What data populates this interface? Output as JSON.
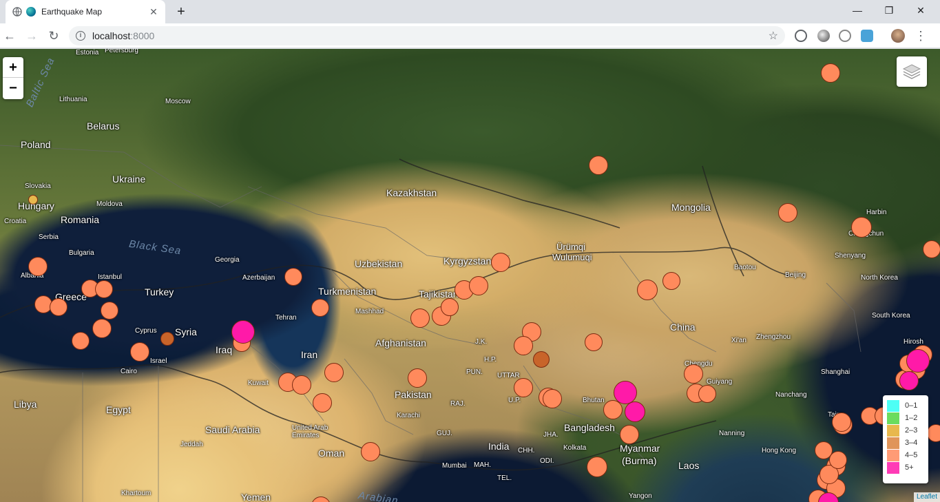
{
  "browser": {
    "tab_title": "Earthquake Map",
    "url_host": "localhost",
    "url_port": ":8000",
    "controls": {
      "close": "✕",
      "new_tab": "+",
      "minimize": "—",
      "maximize": "❐",
      "window_close": "✕"
    }
  },
  "map": {
    "zoom_in": "+",
    "zoom_out": "−",
    "attribution": "Leaflet",
    "labels": [
      {
        "id": "estonia",
        "text": "Estonia",
        "size": "sm"
      },
      {
        "id": "petersburg",
        "text": "Petersburg",
        "size": "sm"
      },
      {
        "id": "lithuania",
        "text": "Lithuania",
        "size": "sm"
      },
      {
        "id": "moscow",
        "text": "Moscow",
        "size": "sm"
      },
      {
        "id": "belarus",
        "text": "Belarus",
        "size": "lg"
      },
      {
        "id": "poland",
        "text": "Poland",
        "size": "lg"
      },
      {
        "id": "ukraine",
        "text": "Ukraine",
        "size": "lg"
      },
      {
        "id": "slovakia",
        "text": "Slovakia",
        "size": "sm"
      },
      {
        "id": "hungary",
        "text": "Hungary",
        "size": "lg"
      },
      {
        "id": "moldova",
        "text": "Moldova",
        "size": "sm"
      },
      {
        "id": "romania",
        "text": "Romania",
        "size": "lg"
      },
      {
        "id": "croatia",
        "text": "Croatia",
        "size": "sm"
      },
      {
        "id": "serbia",
        "text": "Serbia",
        "size": "sm"
      },
      {
        "id": "bulgaria",
        "text": "Bulgaria",
        "size": "sm"
      },
      {
        "id": "albania",
        "text": "Albania",
        "size": "sm"
      },
      {
        "id": "istanbul",
        "text": "Istanbul",
        "size": "sm"
      },
      {
        "id": "greece",
        "text": "Greece",
        "size": "lg"
      },
      {
        "id": "turkey",
        "text": "Turkey",
        "size": "lg"
      },
      {
        "id": "georgia",
        "text": "Georgia",
        "size": "sm"
      },
      {
        "id": "azerbaijan",
        "text": "Azerbaijan",
        "size": "sm"
      },
      {
        "id": "cyprus",
        "text": "Cyprus",
        "size": "sm"
      },
      {
        "id": "syria",
        "text": "Syria",
        "size": "lg"
      },
      {
        "id": "israel",
        "text": "Israel",
        "size": "sm"
      },
      {
        "id": "cairo",
        "text": "Cairo",
        "size": "sm"
      },
      {
        "id": "iraq",
        "text": "Iraq",
        "size": "lg"
      },
      {
        "id": "libya",
        "text": "Libya",
        "size": "lg"
      },
      {
        "id": "egypt",
        "text": "Egypt",
        "size": "lg"
      },
      {
        "id": "kuwait",
        "text": "Kuwait",
        "size": "sm"
      },
      {
        "id": "saudi",
        "text": "Saudi Arabia",
        "size": "lg"
      },
      {
        "id": "jeddah",
        "text": "Jeddah",
        "size": "sm"
      },
      {
        "id": "khartoum",
        "text": "Khartoum",
        "size": "sm"
      },
      {
        "id": "yemen",
        "text": "Yemen",
        "size": "lg"
      },
      {
        "id": "tehran",
        "text": "Tehran",
        "size": "sm"
      },
      {
        "id": "iran",
        "text": "Iran",
        "size": "lg"
      },
      {
        "id": "uae",
        "text": "United Arab Emirates",
        "size": "sm"
      },
      {
        "id": "oman",
        "text": "Oman",
        "size": "lg"
      },
      {
        "id": "kazakhstan",
        "text": "Kazakhstan",
        "size": "lg"
      },
      {
        "id": "uzbekistan",
        "text": "Uzbekistan",
        "size": "lg"
      },
      {
        "id": "turkmenistan",
        "text": "Turkmenistan",
        "size": "lg"
      },
      {
        "id": "mashhad",
        "text": "Mashhad",
        "size": "sm"
      },
      {
        "id": "kyrgyzstan",
        "text": "Kyrgyzstan",
        "size": "lg"
      },
      {
        "id": "tajikistan",
        "text": "Tajikistan",
        "size": "lg"
      },
      {
        "id": "afghanistan",
        "text": "Afghanistan",
        "size": "lg"
      },
      {
        "id": "pakistan",
        "text": "Pakistan",
        "size": "lg"
      },
      {
        "id": "karachi",
        "text": "Karachi",
        "size": "sm"
      },
      {
        "id": "urumqi",
        "text": "Ürümqi",
        "size": "md"
      },
      {
        "id": "wulumuqi",
        "text": "Wulumuqi",
        "size": "md"
      },
      {
        "id": "mongolia",
        "text": "Mongolia",
        "size": "lg"
      },
      {
        "id": "harbin",
        "text": "Harbin",
        "size": "sm"
      },
      {
        "id": "changchun",
        "text": "Changchun",
        "size": "sm"
      },
      {
        "id": "shenyang",
        "text": "Shenyang",
        "size": "sm"
      },
      {
        "id": "baotou",
        "text": "Baotou",
        "size": "sm"
      },
      {
        "id": "beijing",
        "text": "Beijing",
        "size": "sm"
      },
      {
        "id": "north-korea",
        "text": "North Korea",
        "size": "sm"
      },
      {
        "id": "south-korea",
        "text": "South Korea",
        "size": "sm"
      },
      {
        "id": "xian",
        "text": "Xi'an",
        "size": "sm"
      },
      {
        "id": "zhengzhou",
        "text": "Zhengzhou",
        "size": "sm"
      },
      {
        "id": "china",
        "text": "China",
        "size": "lg"
      },
      {
        "id": "hiroshima",
        "text": "Hirosh",
        "size": "sm"
      },
      {
        "id": "jk",
        "text": "J.K.",
        "size": "sm"
      },
      {
        "id": "hp",
        "text": "H.P.",
        "size": "sm"
      },
      {
        "id": "pun",
        "text": "PUN.",
        "size": "sm"
      },
      {
        "id": "uttar",
        "text": "UTTAR",
        "size": "sm"
      },
      {
        "id": "up",
        "text": "U.P.",
        "size": "sm"
      },
      {
        "id": "raj",
        "text": "RAJ.",
        "size": "sm"
      },
      {
        "id": "guj",
        "text": "GUJ.",
        "size": "sm"
      },
      {
        "id": "jha",
        "text": "JHA.",
        "size": "sm"
      },
      {
        "id": "chh",
        "text": "CHH.",
        "size": "sm"
      },
      {
        "id": "odi",
        "text": "ODI.",
        "size": "sm"
      },
      {
        "id": "mah",
        "text": "MAH.",
        "size": "sm"
      },
      {
        "id": "tel",
        "text": "TEL.",
        "size": "sm"
      },
      {
        "id": "kolkata",
        "text": "Kolkata",
        "size": "sm"
      },
      {
        "id": "mumbai",
        "text": "Mumbai",
        "size": "sm"
      },
      {
        "id": "india",
        "text": "India",
        "size": "lg"
      },
      {
        "id": "bhutan",
        "text": "Bhutan",
        "size": "sm"
      },
      {
        "id": "bangladesh",
        "text": "Bangladesh",
        "size": "lg"
      },
      {
        "id": "myanmar",
        "text": "Myanmar",
        "size": "lg"
      },
      {
        "id": "burma",
        "text": "(Burma)",
        "size": "lg"
      },
      {
        "id": "yangon",
        "text": "Yangon",
        "size": "sm"
      },
      {
        "id": "laos",
        "text": "Laos",
        "size": "lg"
      },
      {
        "id": "chengdu",
        "text": "Chengdu",
        "size": "sm"
      },
      {
        "id": "guiyang",
        "text": "Guiyang",
        "size": "sm"
      },
      {
        "id": "shanghai",
        "text": "Shanghai",
        "size": "sm"
      },
      {
        "id": "nanchang",
        "text": "Nanchang",
        "size": "sm"
      },
      {
        "id": "taipei",
        "text": "Taipe",
        "size": "sm"
      },
      {
        "id": "nanning",
        "text": "Nanning",
        "size": "sm"
      },
      {
        "id": "hongkong",
        "text": "Hong Kong",
        "size": "sm"
      },
      {
        "id": "black-sea",
        "text": "Black Sea",
        "size": "sea"
      },
      {
        "id": "baltic",
        "text": "Baltic Sea",
        "size": "sea"
      },
      {
        "id": "arabian",
        "text": "Arabian",
        "size": "sea"
      }
    ],
    "legend": [
      {
        "label": "0–1",
        "color": "#4dfff5"
      },
      {
        "label": "1–2",
        "color": "#6bdc5e"
      },
      {
        "label": "2–3",
        "color": "#e8b84d"
      },
      {
        "label": "3–4",
        "color": "#e0955a"
      },
      {
        "label": "4–5",
        "color": "#ff9b76"
      },
      {
        "label": "5+",
        "color": "#ff3bb6"
      }
    ],
    "quakes": [
      {
        "id": "q1",
        "mag": "4-5"
      },
      {
        "id": "q2",
        "mag": "4-5"
      },
      {
        "id": "q3",
        "mag": "4-5"
      },
      {
        "id": "q4",
        "mag": "4-5"
      },
      {
        "id": "q5",
        "mag": "4-5"
      },
      {
        "id": "q6",
        "mag": "4-5"
      },
      {
        "id": "q7",
        "mag": "2-3"
      },
      {
        "id": "q8",
        "mag": "4-5"
      },
      {
        "id": "q9",
        "mag": "4-5"
      },
      {
        "id": "q10",
        "mag": "4-5"
      },
      {
        "id": "q11",
        "mag": "4-5"
      },
      {
        "id": "q12",
        "mag": "4-5"
      },
      {
        "id": "q13",
        "mag": "4-5"
      },
      {
        "id": "q14",
        "mag": "4-5"
      },
      {
        "id": "q15",
        "mag": "4-5"
      },
      {
        "id": "q16",
        "mag": "4-5"
      },
      {
        "id": "q17",
        "mag": "4-5"
      },
      {
        "id": "q18",
        "mag": "3-4"
      },
      {
        "id": "q19",
        "mag": "4-5"
      },
      {
        "id": "q20",
        "mag": "5+"
      },
      {
        "id": "q21",
        "mag": "4-5"
      },
      {
        "id": "q22",
        "mag": "4-5"
      },
      {
        "id": "q23",
        "mag": "4-5"
      },
      {
        "id": "q24",
        "mag": "4-5"
      },
      {
        "id": "q25",
        "mag": "4-5"
      },
      {
        "id": "q26",
        "mag": "4-5"
      },
      {
        "id": "q27",
        "mag": "4-5"
      },
      {
        "id": "q28",
        "mag": "4-5"
      },
      {
        "id": "q29",
        "mag": "4-5"
      },
      {
        "id": "q30",
        "mag": "4-5"
      },
      {
        "id": "q31",
        "mag": "4-5"
      },
      {
        "id": "q32",
        "mag": "4-5"
      },
      {
        "id": "q33",
        "mag": "4-5"
      },
      {
        "id": "q34",
        "mag": "4-5"
      },
      {
        "id": "q35",
        "mag": "4-5"
      },
      {
        "id": "q36",
        "mag": "4-5"
      },
      {
        "id": "q37",
        "mag": "4-5"
      },
      {
        "id": "q38",
        "mag": "4-5"
      },
      {
        "id": "q39",
        "mag": "3-4"
      },
      {
        "id": "q40",
        "mag": "4-5"
      },
      {
        "id": "q41",
        "mag": "4-5"
      },
      {
        "id": "q42",
        "mag": "4-5"
      },
      {
        "id": "q43",
        "mag": "5+"
      },
      {
        "id": "q44",
        "mag": "5+"
      },
      {
        "id": "q45",
        "mag": "4-5"
      },
      {
        "id": "q46",
        "mag": "4-5"
      },
      {
        "id": "q47",
        "mag": "4-5"
      },
      {
        "id": "q48",
        "mag": "4-5"
      },
      {
        "id": "q49",
        "mag": "4-5"
      },
      {
        "id": "q50",
        "mag": "4-5"
      },
      {
        "id": "q51",
        "mag": "4-5"
      },
      {
        "id": "q52",
        "mag": "4-5"
      },
      {
        "id": "q53",
        "mag": "4-5"
      },
      {
        "id": "q54",
        "mag": "4-5"
      },
      {
        "id": "q55",
        "mag": "4-5"
      },
      {
        "id": "q56",
        "mag": "4-5"
      },
      {
        "id": "q57",
        "mag": "5+"
      },
      {
        "id": "q58",
        "mag": "5+"
      },
      {
        "id": "q59",
        "mag": "4-5"
      },
      {
        "id": "q60",
        "mag": "4-5"
      },
      {
        "id": "q61",
        "mag": "4-5"
      },
      {
        "id": "q62",
        "mag": "4-5"
      },
      {
        "id": "q63",
        "mag": "4-5"
      },
      {
        "id": "q64",
        "mag": "4-5"
      },
      {
        "id": "q65",
        "mag": "4-5"
      },
      {
        "id": "q66",
        "mag": "5+"
      },
      {
        "id": "q67",
        "mag": "4-5"
      },
      {
        "id": "q68",
        "mag": "4-5"
      },
      {
        "id": "q69",
        "mag": "4-5"
      }
    ]
  }
}
